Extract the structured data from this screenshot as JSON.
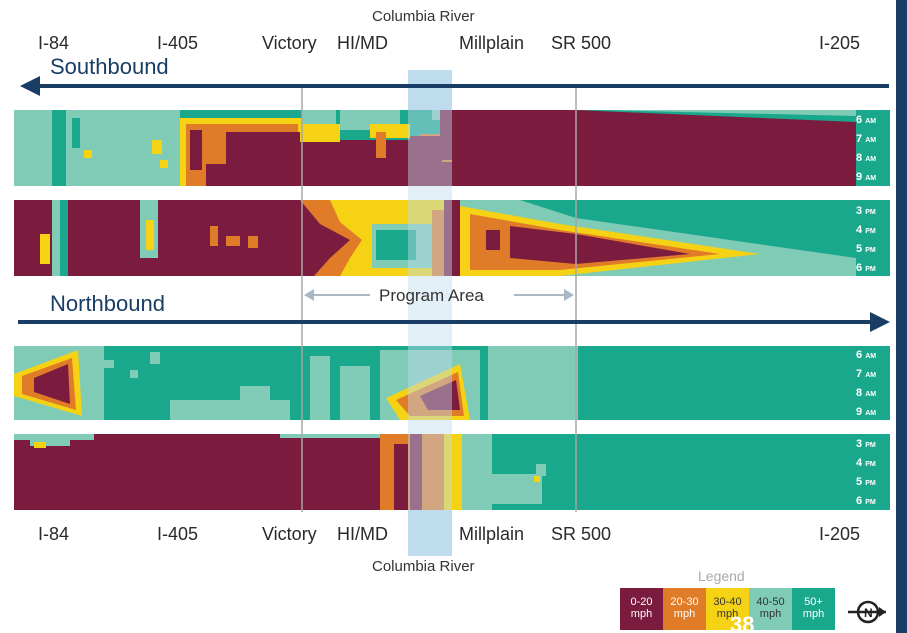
{
  "chart_data": {
    "type": "heatmap",
    "columns": [
      "I-84",
      "I-405",
      "Victory",
      "HI/MD",
      "Millplain",
      "SR 500",
      "I-205"
    ],
    "top_river_label": "Columbia River",
    "bottom_river_label": "Columbia River",
    "program_area_label": "Program Area",
    "panels": [
      {
        "direction": "Southbound",
        "periods": [
          {
            "times": [
              {
                "h": "6",
                "ap": "AM"
              },
              {
                "h": "7",
                "ap": "AM"
              },
              {
                "h": "8",
                "ap": "AM"
              },
              {
                "h": "9",
                "ap": "AM"
              }
            ]
          },
          {
            "times": [
              {
                "h": "3",
                "ap": "PM"
              },
              {
                "h": "4",
                "ap": "PM"
              },
              {
                "h": "5",
                "ap": "PM"
              },
              {
                "h": "6",
                "ap": "PM"
              }
            ]
          }
        ]
      },
      {
        "direction": "Northbound",
        "periods": [
          {
            "times": [
              {
                "h": "6",
                "ap": "AM"
              },
              {
                "h": "7",
                "ap": "AM"
              },
              {
                "h": "8",
                "ap": "AM"
              },
              {
                "h": "9",
                "ap": "AM"
              }
            ]
          },
          {
            "times": [
              {
                "h": "3",
                "ap": "PM"
              },
              {
                "h": "4",
                "ap": "PM"
              },
              {
                "h": "5",
                "ap": "PM"
              },
              {
                "h": "6",
                "ap": "PM"
              }
            ]
          }
        ]
      }
    ],
    "legend": {
      "title": "Legend",
      "bins": [
        {
          "range": "0-20",
          "unit": "mph",
          "color": "#7b1b3e"
        },
        {
          "range": "20-30",
          "unit": "mph",
          "color": "#e07b28"
        },
        {
          "range": "30-40",
          "unit": "mph",
          "color": "#f5d314"
        },
        {
          "range": "40-50",
          "unit": "mph",
          "color": "#7fcbb6"
        },
        {
          "range": "50+",
          "unit": "mph",
          "color": "#1aa88c"
        }
      ]
    }
  },
  "page_number": "38",
  "north_icon": "north-arrow-icon"
}
